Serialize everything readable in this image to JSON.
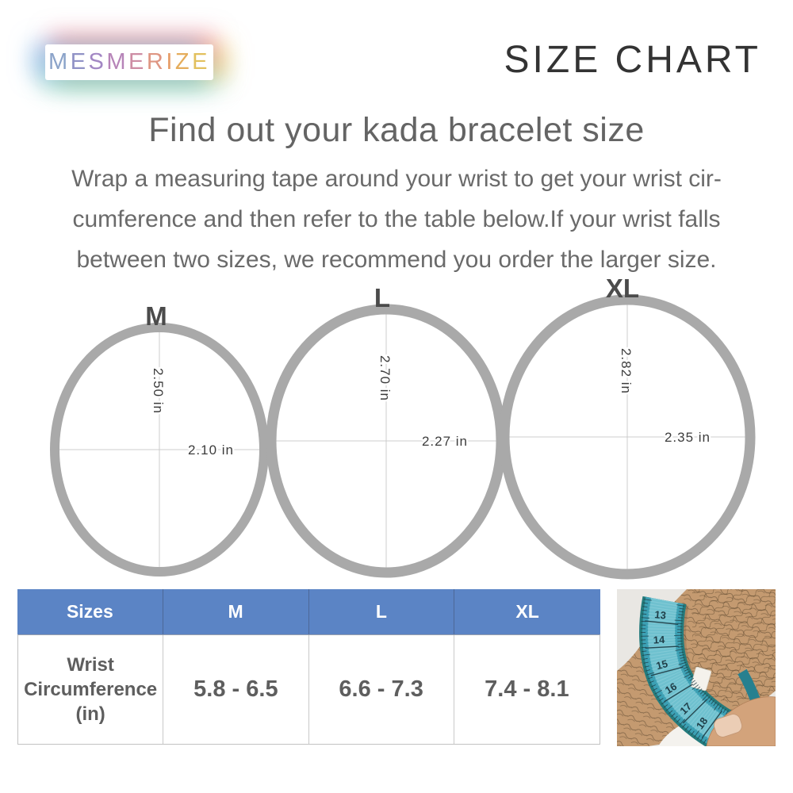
{
  "brand": {
    "logo_text": "MESMERIZE",
    "letters": [
      {
        "ch": "M",
        "color": "#8ba3c9"
      },
      {
        "ch": "E",
        "color": "#9092c6"
      },
      {
        "ch": "S",
        "color": "#a287c4"
      },
      {
        "ch": "M",
        "color": "#b684b8"
      },
      {
        "ch": "E",
        "color": "#cd8da4"
      },
      {
        "ch": "R",
        "color": "#df9683"
      },
      {
        "ch": "I",
        "color": "#e79d68"
      },
      {
        "ch": "Z",
        "color": "#e5ad5c"
      },
      {
        "ch": "E",
        "color": "#e2c05e"
      }
    ]
  },
  "header": {
    "title": "SIZE CHART"
  },
  "intro": {
    "heading": "Find out your kada bracelet size",
    "lines": [
      "Wrap a measuring tape around your wrist to get your wrist cir-",
      "cumference and then refer to the table below.If your wrist falls",
      "between two sizes, we recommend you order the larger size."
    ]
  },
  "sizes": [
    {
      "label": "M",
      "vertical_diameter": "2.50 in",
      "horizontal_diameter": "2.10 in"
    },
    {
      "label": "L",
      "vertical_diameter": "2.70 in",
      "horizontal_diameter": "2.27 in"
    },
    {
      "label": "XL",
      "vertical_diameter": "2.82 in",
      "horizontal_diameter": "2.35 in"
    }
  ],
  "table": {
    "headers": [
      "Sizes",
      "M",
      "L",
      "XL"
    ],
    "row_label_lines": [
      "Wrist",
      "Circumference",
      "(in)"
    ],
    "values": [
      "5.8 - 6.5",
      "6.6 - 7.3",
      "7.4 - 8.1"
    ]
  },
  "photo": {
    "tape_numbers": [
      "13",
      "14",
      "15",
      "16",
      "17",
      "18"
    ]
  },
  "colors": {
    "table_header_bg": "#5b84c5",
    "ring_gray": "#a9a9a9",
    "crosshair_gray": "#cccccc",
    "tape_teal": "#3ca0b4",
    "heading_gray": "#646464"
  }
}
